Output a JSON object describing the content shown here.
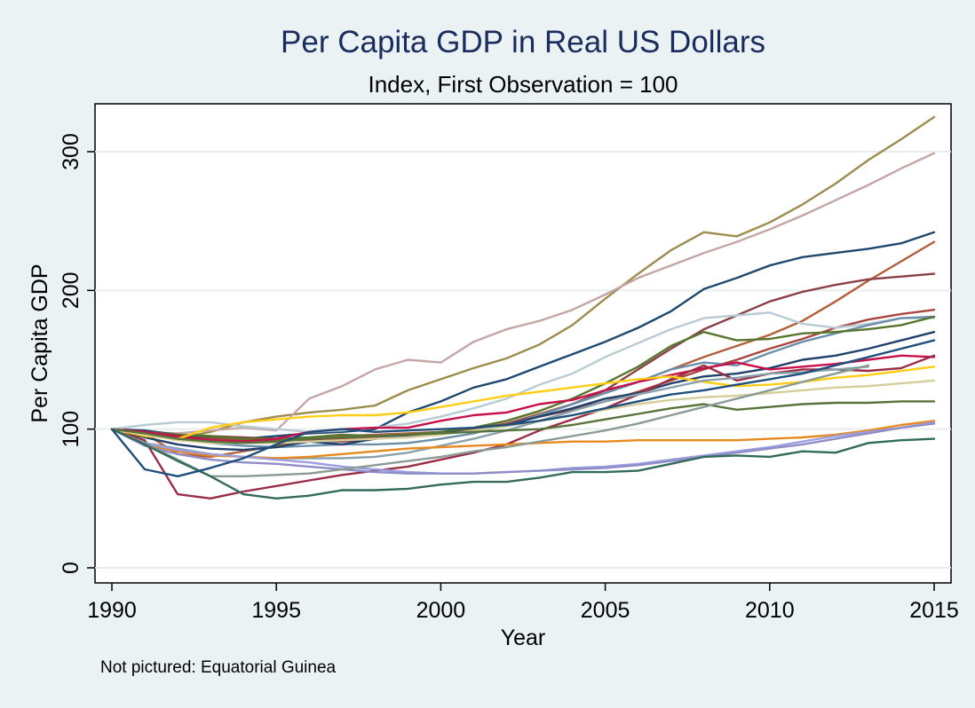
{
  "chart_data": {
    "type": "line",
    "title": "Per Capita GDP in Real US Dollars",
    "subtitle": "Index, First Observation = 100",
    "xlabel": "Year",
    "ylabel": "Per Capita GDP",
    "xlim": [
      1990,
      2015
    ],
    "ylim": [
      0,
      330
    ],
    "xticks": [
      1990,
      1995,
      2000,
      2005,
      2010,
      2015
    ],
    "yticks": [
      0,
      100,
      200,
      300
    ],
    "grid": true,
    "legend": "none",
    "note": "Not pictured: Equatorial Guinea",
    "x": [
      1990,
      1991,
      1992,
      1993,
      1994,
      1995,
      1996,
      1997,
      1998,
      1999,
      2000,
      2001,
      2002,
      2003,
      2004,
      2005,
      2006,
      2007,
      2008,
      2009,
      2010,
      2011,
      2012,
      2013,
      2014,
      2015
    ],
    "series": [
      {
        "color": "#9c8c4e",
        "values": [
          100,
          97,
          93,
          98,
          105,
          109,
          112,
          114,
          117,
          128,
          136,
          144,
          151,
          161,
          175,
          194,
          212,
          229,
          242,
          239,
          249,
          262,
          277,
          294,
          309,
          325
        ]
      },
      {
        "color": "#c4a6a6",
        "values": [
          100,
          98,
          97,
          99,
          101,
          99,
          122,
          131,
          143,
          150,
          148,
          163,
          172,
          178,
          186,
          197,
          209,
          218,
          227,
          235,
          244,
          254,
          265,
          276,
          288,
          299
        ]
      },
      {
        "color": "#1e4870",
        "values": [
          100,
          99,
          96,
          94,
          93,
          95,
          97,
          98,
          100,
          112,
          120,
          130,
          136,
          145,
          154,
          163,
          173,
          185,
          201,
          209,
          218,
          224,
          227,
          230,
          234,
          242
        ]
      },
      {
        "color": "#b35f3a",
        "values": [
          100,
          97,
          82,
          80,
          84,
          88,
          92,
          95,
          96,
          97,
          98,
          100,
          104,
          111,
          118,
          126,
          134,
          143,
          152,
          160,
          168,
          178,
          192,
          207,
          221,
          235
        ]
      },
      {
        "color": "#8a4146",
        "values": [
          100,
          98,
          96,
          95,
          94,
          93,
          92,
          91,
          93,
          95,
          97,
          100,
          104,
          110,
          118,
          128,
          143,
          158,
          172,
          182,
          192,
          199,
          204,
          208,
          210,
          212
        ]
      },
      {
        "color": "#a8453c",
        "values": [
          100,
          96,
          94,
          93,
          92,
          92,
          93,
          93,
          94,
          96,
          98,
          100,
          104,
          109,
          114,
          120,
          127,
          135,
          143,
          150,
          158,
          165,
          173,
          179,
          183,
          186
        ]
      },
      {
        "color": "#b8cbd5",
        "values": [
          100,
          103,
          105,
          105,
          102,
          100,
          98,
          99,
          101,
          104,
          109,
          115,
          122,
          132,
          140,
          152,
          162,
          172,
          180,
          182,
          184,
          176,
          173,
          176,
          180,
          180
        ]
      },
      {
        "color": "#6b8faa",
        "values": [
          100,
          97,
          93,
          90,
          88,
          87,
          88,
          89,
          89,
          90,
          93,
          97,
          103,
          110,
          118,
          126,
          134,
          143,
          148,
          146,
          155,
          163,
          169,
          175,
          180,
          181
        ]
      },
      {
        "color": "#56762e",
        "values": [
          100,
          98,
          96,
          95,
          93,
          93,
          94,
          96,
          95,
          96,
          98,
          101,
          106,
          113,
          122,
          133,
          145,
          160,
          170,
          164,
          165,
          169,
          170,
          172,
          175,
          181
        ]
      },
      {
        "color": "#21416c",
        "values": [
          100,
          94,
          89,
          86,
          85,
          87,
          91,
          89,
          93,
          95,
          97,
          99,
          103,
          109,
          115,
          122,
          126,
          133,
          138,
          140,
          144,
          150,
          153,
          158,
          164,
          170
        ]
      },
      {
        "color": "#c70f4a",
        "values": [
          100,
          98,
          95,
          92,
          91,
          93,
          98,
          100,
          101,
          101,
          106,
          110,
          112,
          118,
          121,
          128,
          134,
          139,
          144,
          148,
          143,
          145,
          147,
          150,
          153,
          152
        ]
      },
      {
        "color": "#9a2d46",
        "values": [
          100,
          92,
          53,
          50,
          55,
          59,
          63,
          67,
          70,
          73,
          78,
          83,
          89,
          99,
          107,
          115,
          125,
          136,
          146,
          135,
          140,
          143,
          143,
          142,
          144,
          153
        ]
      },
      {
        "color": "#ffce14",
        "values": [
          100,
          95,
          93,
          101,
          105,
          107,
          109,
          110,
          110,
          112,
          116,
          120,
          124,
          127,
          130,
          133,
          136,
          138,
          134,
          131,
          132,
          134,
          137,
          139,
          142,
          145
        ]
      },
      {
        "color": "#8aa2ae",
        "values": [
          100,
          90,
          86,
          82,
          80,
          79,
          79,
          79,
          80,
          83,
          88,
          93,
          99,
          106,
          113,
          120,
          125,
          130,
          135,
          137,
          140,
          141,
          143,
          145,
          null,
          null
        ]
      },
      {
        "color": "#d5cd9a",
        "values": [
          100,
          96,
          92,
          90,
          90,
          90,
          91,
          92,
          93,
          94,
          96,
          99,
          102,
          106,
          110,
          114,
          118,
          121,
          123,
          124,
          126,
          128,
          130,
          131,
          133,
          135
        ]
      },
      {
        "color": "#57733a",
        "values": [
          100,
          97,
          93,
          91,
          90,
          91,
          93,
          94,
          95,
          96,
          97,
          98,
          99,
          100,
          103,
          107,
          111,
          115,
          118,
          114,
          116,
          118,
          119,
          119,
          120,
          120
        ]
      },
      {
        "color": "#e8891f",
        "values": [
          100,
          89,
          84,
          81,
          80,
          79,
          80,
          82,
          84,
          86,
          87,
          88,
          89,
          90,
          91,
          91,
          92,
          92,
          92,
          92,
          93,
          94,
          96,
          99,
          103,
          106
        ]
      },
      {
        "color": "#9c9ee0",
        "values": [
          100,
          90,
          85,
          82,
          80,
          78,
          76,
          73,
          71,
          69,
          68,
          68,
          69,
          70,
          72,
          73,
          75,
          78,
          81,
          84,
          87,
          91,
          95,
          98,
          101,
          105
        ]
      },
      {
        "color": "#8f8dc8",
        "values": [
          100,
          88,
          82,
          78,
          76,
          75,
          73,
          71,
          69,
          68,
          68,
          68,
          69,
          70,
          71,
          72,
          74,
          77,
          80,
          83,
          86,
          89,
          93,
          97,
          101,
          104
        ]
      },
      {
        "color": "#8a9a94",
        "values": [
          100,
          90,
          78,
          66,
          66,
          67,
          68,
          71,
          74,
          77,
          80,
          84,
          87,
          91,
          95,
          99,
          104,
          110,
          116,
          122,
          128,
          134,
          140,
          146,
          null,
          null
        ]
      },
      {
        "color": "#326b5c",
        "values": [
          100,
          89,
          77,
          66,
          53,
          50,
          52,
          56,
          56,
          57,
          60,
          62,
          62,
          65,
          69,
          69,
          70,
          75,
          80,
          81,
          80,
          84,
          83,
          90,
          92,
          93
        ]
      },
      {
        "color": "#1f4f7c",
        "values": [
          100,
          71,
          66,
          72,
          79,
          89,
          98,
          100,
          98,
          99,
          100,
          101,
          103,
          106,
          110,
          115,
          120,
          125,
          128,
          132,
          136,
          140,
          146,
          152,
          158,
          164
        ]
      }
    ]
  }
}
